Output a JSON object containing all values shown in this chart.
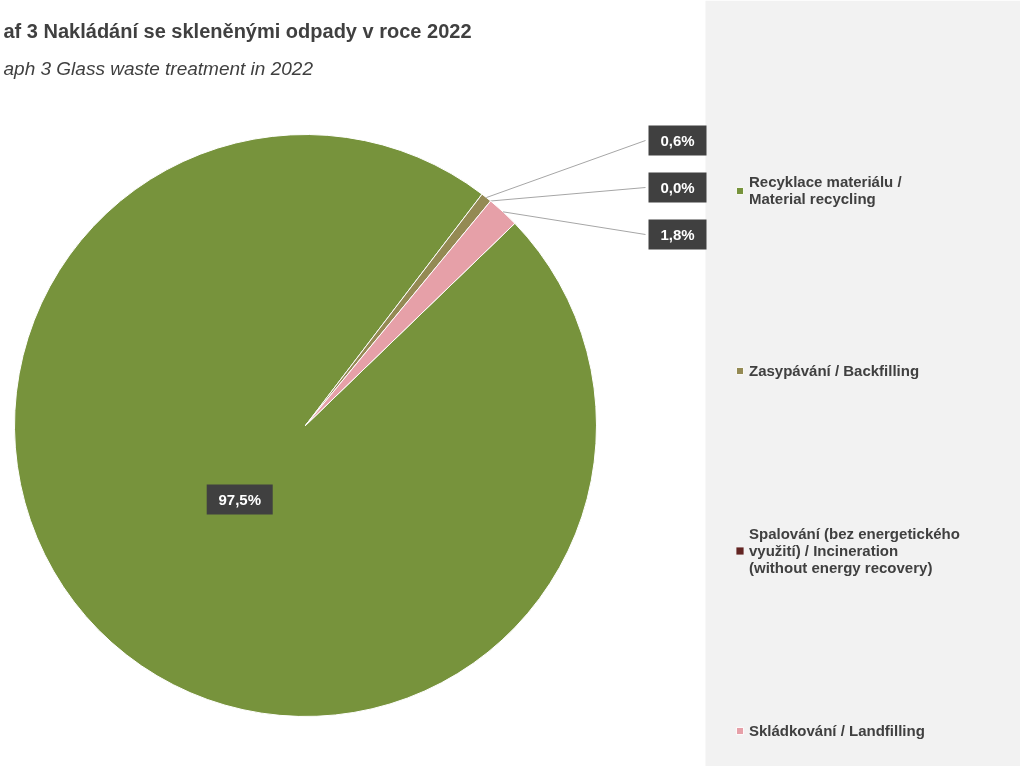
{
  "chart_data": {
    "type": "pie",
    "title": "af 3 Nakládání se skleněnými odpady v roce 2022",
    "subtitle": "aph 3 Glass waste treatment in 2022",
    "categories": [
      "Recyklace materiálu /\nMaterial recycling",
      "Zasypávání / Backfilling",
      "Spalování (bez energetického\nvyužití) / Incineration\n(without energy recovery)",
      "Skládkování / Landfilling"
    ],
    "values": [
      97.5,
      0.6,
      0.0,
      1.8
    ],
    "value_labels": [
      "97,5%",
      "0,6%",
      "0,0%",
      "1,8%"
    ],
    "colors": [
      "#77933c",
      "#948a54",
      "#632523",
      "#e6a0a8"
    ],
    "legend": "right"
  }
}
